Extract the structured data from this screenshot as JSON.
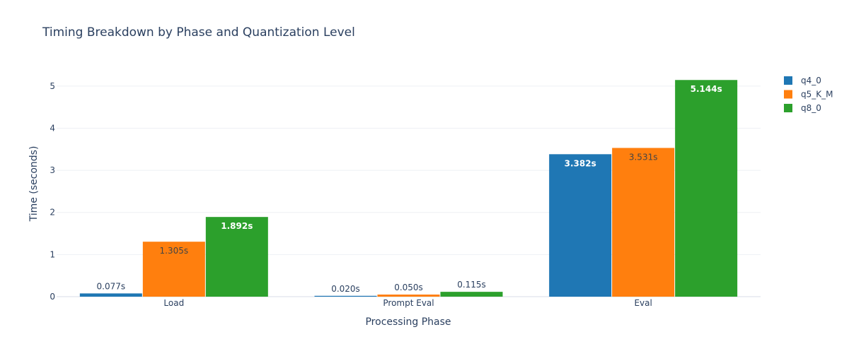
{
  "chart_data": {
    "type": "bar",
    "title": "Timing Breakdown by Phase and Quantization Level",
    "xlabel": "Processing Phase",
    "ylabel": "Time (seconds)",
    "categories": [
      "Load",
      "Prompt Eval",
      "Eval"
    ],
    "ylim": [
      0,
      5.45
    ],
    "yticks": [
      0,
      1,
      2,
      3,
      4,
      5
    ],
    "grid": true,
    "legend_position": "top-right",
    "series": [
      {
        "name": "q4_0",
        "color": "#1f77b4",
        "values": [
          0.077,
          0.02,
          3.382
        ],
        "labels": [
          "0.077s",
          "0.020s",
          "3.382s"
        ]
      },
      {
        "name": "q5_K_M",
        "color": "#ff7f0e",
        "values": [
          1.305,
          0.05,
          3.531
        ],
        "labels": [
          "1.305s",
          "0.050s",
          "3.531s"
        ]
      },
      {
        "name": "q8_0",
        "color": "#2ca02c",
        "values": [
          1.892,
          0.115,
          5.144
        ],
        "labels": [
          "1.892s",
          "0.115s",
          "5.144s"
        ]
      }
    ]
  }
}
